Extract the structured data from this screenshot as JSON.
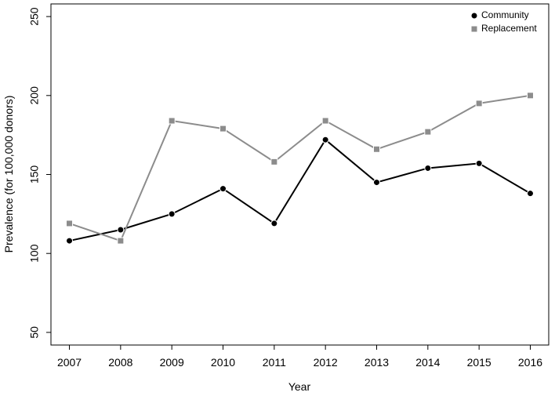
{
  "chart_data": {
    "type": "line",
    "x_label": "Year",
    "y_label": "Prevalence (for 100,000 donors)",
    "x": [
      2007,
      2008,
      2009,
      2010,
      2011,
      2012,
      2013,
      2014,
      2015,
      2016
    ],
    "series": [
      {
        "name": "Community",
        "color": "#000000",
        "marker": "circle",
        "values": [
          108,
          115,
          125,
          141,
          119,
          172,
          145,
          154,
          157,
          138
        ]
      },
      {
        "name": "Replacement",
        "color": "#8c8c8c",
        "marker": "square",
        "values": [
          119,
          108,
          184,
          179,
          158,
          184,
          166,
          177,
          195,
          200
        ]
      }
    ],
    "xlim": [
      2006.64,
      2016.36
    ],
    "xticks": [
      2007,
      2008,
      2009,
      2010,
      2011,
      2012,
      2013,
      2014,
      2015,
      2016
    ],
    "ylim": [
      42,
      258
    ],
    "yticks": [
      50,
      100,
      150,
      200,
      250
    ],
    "legend": "top-right"
  }
}
